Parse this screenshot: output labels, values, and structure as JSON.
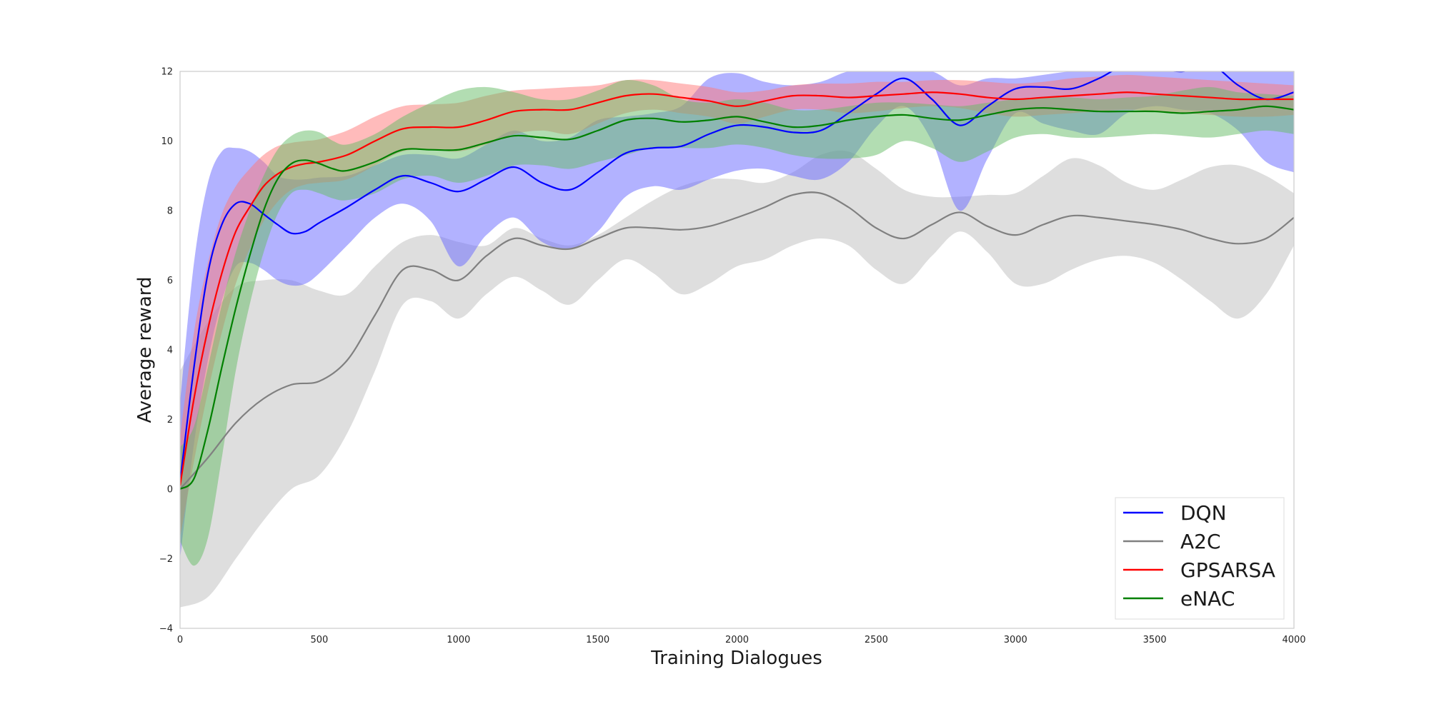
{
  "chart_data": {
    "type": "line",
    "title": "",
    "xlabel": "Training Dialogues",
    "ylabel": "Average reward",
    "xlim": [
      0,
      4000
    ],
    "ylim": [
      -4,
      12
    ],
    "xticks": [
      0,
      500,
      1000,
      1500,
      2000,
      2500,
      3000,
      3500,
      4000
    ],
    "yticks": [
      -4,
      -2,
      0,
      2,
      4,
      6,
      8,
      10,
      12
    ],
    "grid": false,
    "legend_position": "lower-right",
    "series": [
      {
        "name": "A2C",
        "color": "#808080",
        "band_color": "#bdbdbd",
        "x": [
          0,
          100,
          200,
          300,
          400,
          500,
          600,
          700,
          800,
          900,
          1000,
          1100,
          1200,
          1300,
          1400,
          1500,
          1600,
          1700,
          1800,
          1900,
          2000,
          2100,
          2200,
          2300,
          2400,
          2500,
          2600,
          2700,
          2800,
          2900,
          3000,
          3100,
          3200,
          3300,
          3400,
          3500,
          3600,
          3700,
          3800,
          3900,
          4000
        ],
        "mean": [
          0.0,
          0.9,
          1.9,
          2.6,
          3.0,
          3.1,
          3.7,
          5.0,
          6.3,
          6.3,
          6.0,
          6.7,
          7.2,
          7.0,
          6.9,
          7.2,
          7.5,
          7.5,
          7.45,
          7.55,
          7.8,
          8.1,
          8.45,
          8.5,
          8.1,
          7.5,
          7.2,
          7.6,
          7.95,
          7.55,
          7.3,
          7.6,
          7.85,
          7.8,
          7.7,
          7.6,
          7.45,
          7.2,
          7.05,
          7.2,
          7.8
        ],
        "upper": [
          3.4,
          4.8,
          5.8,
          6.0,
          6.0,
          5.7,
          5.6,
          6.4,
          7.1,
          7.3,
          7.1,
          7.0,
          7.5,
          7.2,
          7.0,
          7.3,
          7.8,
          8.3,
          8.7,
          8.9,
          8.9,
          8.8,
          9.1,
          9.6,
          9.7,
          9.2,
          8.6,
          8.4,
          8.4,
          8.45,
          8.5,
          9.0,
          9.5,
          9.3,
          8.8,
          8.6,
          8.9,
          9.25,
          9.3,
          9.0,
          8.5
        ],
        "lower": [
          -3.4,
          -3.1,
          -2.0,
          -0.9,
          0.0,
          0.4,
          1.6,
          3.4,
          5.3,
          5.4,
          4.9,
          5.6,
          6.1,
          5.7,
          5.3,
          6.0,
          6.6,
          6.2,
          5.6,
          5.9,
          6.4,
          6.6,
          7.0,
          7.2,
          7.0,
          6.3,
          5.9,
          6.7,
          7.4,
          6.8,
          5.9,
          5.9,
          6.3,
          6.6,
          6.7,
          6.5,
          6.0,
          5.4,
          4.9,
          5.6,
          7.0
        ]
      },
      {
        "name": "DQN",
        "color": "#0000ff",
        "band_color": "#6666ff",
        "x": [
          0,
          50,
          100,
          150,
          200,
          250,
          300,
          350,
          400,
          450,
          500,
          600,
          700,
          800,
          900,
          1000,
          1100,
          1200,
          1300,
          1400,
          1500,
          1600,
          1700,
          1800,
          1900,
          2000,
          2100,
          2200,
          2300,
          2400,
          2500,
          2600,
          2700,
          2800,
          2900,
          3000,
          3100,
          3200,
          3300,
          3400,
          3500,
          3600,
          3700,
          3800,
          3900,
          4000
        ],
        "mean": [
          0.2,
          3.5,
          6.2,
          7.6,
          8.2,
          8.2,
          7.9,
          7.6,
          7.35,
          7.4,
          7.65,
          8.1,
          8.6,
          9.0,
          8.8,
          8.55,
          8.9,
          9.25,
          8.8,
          8.6,
          9.1,
          9.65,
          9.8,
          9.85,
          10.2,
          10.45,
          10.4,
          10.25,
          10.3,
          10.8,
          11.35,
          11.8,
          11.2,
          10.45,
          11.0,
          11.5,
          11.55,
          11.5,
          11.8,
          12.2,
          12.1,
          12.0,
          12.2,
          11.6,
          11.2,
          11.4
        ],
        "upper": [
          2.5,
          6.5,
          8.8,
          9.7,
          9.8,
          9.7,
          9.4,
          9.0,
          8.9,
          8.9,
          8.95,
          9.0,
          9.3,
          9.6,
          9.6,
          9.5,
          9.9,
          10.3,
          10.0,
          10.1,
          10.6,
          10.7,
          10.8,
          11.0,
          11.8,
          11.95,
          11.7,
          11.6,
          11.7,
          12.0,
          12.0,
          12.0,
          12.0,
          11.6,
          11.8,
          11.8,
          11.9,
          12.0,
          12.0,
          12.0,
          12.0,
          12.0,
          12.0,
          12.0,
          12.0,
          12.0
        ],
        "lower": [
          -2.0,
          1.3,
          3.7,
          5.4,
          6.4,
          6.5,
          6.3,
          6.0,
          5.85,
          5.9,
          6.2,
          7.0,
          7.8,
          8.2,
          7.7,
          6.4,
          7.3,
          7.8,
          7.1,
          6.9,
          7.4,
          8.4,
          8.7,
          8.6,
          8.9,
          9.15,
          9.2,
          9.0,
          8.9,
          9.4,
          10.4,
          11.0,
          10.0,
          8.0,
          9.5,
          10.8,
          10.5,
          10.3,
          10.2,
          10.8,
          11.0,
          10.9,
          10.8,
          10.3,
          9.4,
          9.1
        ]
      },
      {
        "name": "GPSARSA",
        "color": "#ff0000",
        "band_color": "#ff7777",
        "x": [
          0,
          50,
          100,
          150,
          200,
          250,
          300,
          350,
          400,
          450,
          500,
          600,
          700,
          800,
          900,
          1000,
          1100,
          1200,
          1300,
          1400,
          1500,
          1600,
          1700,
          1800,
          1900,
          2000,
          2100,
          2200,
          2300,
          2400,
          2500,
          2600,
          2700,
          2800,
          2900,
          3000,
          3100,
          3200,
          3300,
          3400,
          3500,
          3600,
          3700,
          3800,
          3900,
          4000
        ],
        "mean": [
          0.1,
          2.6,
          4.6,
          6.2,
          7.4,
          8.1,
          8.7,
          9.05,
          9.25,
          9.35,
          9.4,
          9.6,
          10.0,
          10.35,
          10.4,
          10.4,
          10.6,
          10.85,
          10.9,
          10.9,
          11.1,
          11.3,
          11.35,
          11.25,
          11.15,
          11.0,
          11.15,
          11.3,
          11.3,
          11.25,
          11.3,
          11.35,
          11.4,
          11.35,
          11.25,
          11.2,
          11.25,
          11.3,
          11.35,
          11.4,
          11.35,
          11.3,
          11.25,
          11.2,
          11.2,
          11.2
        ],
        "upper": [
          1.5,
          4.5,
          6.5,
          7.9,
          8.7,
          9.2,
          9.6,
          9.85,
          9.95,
          10.0,
          10.05,
          10.3,
          10.7,
          11.0,
          11.05,
          11.1,
          11.3,
          11.45,
          11.5,
          11.55,
          11.6,
          11.75,
          11.75,
          11.65,
          11.55,
          11.4,
          11.45,
          11.6,
          11.65,
          11.65,
          11.7,
          11.7,
          11.75,
          11.75,
          11.7,
          11.65,
          11.7,
          11.8,
          11.85,
          11.9,
          11.85,
          11.8,
          11.75,
          11.7,
          11.65,
          11.6
        ],
        "lower": [
          -1.4,
          0.8,
          2.8,
          4.5,
          5.9,
          6.9,
          7.7,
          8.25,
          8.6,
          8.75,
          8.8,
          8.9,
          9.3,
          9.7,
          9.75,
          9.7,
          9.9,
          10.2,
          10.3,
          10.2,
          10.5,
          10.8,
          10.9,
          10.8,
          10.7,
          10.5,
          10.7,
          10.9,
          10.9,
          10.8,
          10.85,
          10.95,
          11.0,
          10.95,
          10.8,
          10.7,
          10.75,
          10.8,
          10.85,
          10.9,
          10.85,
          10.8,
          10.75,
          10.7,
          10.7,
          10.75
        ]
      },
      {
        "name": "eNAC",
        "color": "#008000",
        "band_color": "#66bb66",
        "x": [
          0,
          50,
          100,
          150,
          200,
          250,
          300,
          350,
          400,
          450,
          500,
          550,
          600,
          700,
          800,
          900,
          1000,
          1100,
          1200,
          1300,
          1400,
          1500,
          1600,
          1700,
          1800,
          1900,
          2000,
          2100,
          2200,
          2300,
          2400,
          2500,
          2600,
          2700,
          2800,
          2900,
          3000,
          3100,
          3200,
          3300,
          3400,
          3500,
          3600,
          3700,
          3800,
          3900,
          4000
        ],
        "mean": [
          0.0,
          0.3,
          1.7,
          3.5,
          5.2,
          6.7,
          8.0,
          8.9,
          9.35,
          9.45,
          9.35,
          9.2,
          9.15,
          9.4,
          9.75,
          9.75,
          9.75,
          9.95,
          10.15,
          10.1,
          10.05,
          10.3,
          10.6,
          10.65,
          10.55,
          10.6,
          10.7,
          10.55,
          10.4,
          10.45,
          10.6,
          10.7,
          10.75,
          10.65,
          10.6,
          10.75,
          10.9,
          10.95,
          10.9,
          10.85,
          10.85,
          10.85,
          10.8,
          10.85,
          10.9,
          11.0,
          10.9
        ],
        "upper": [
          1.2,
          1.8,
          3.5,
          5.3,
          6.8,
          8.0,
          9.0,
          9.75,
          10.15,
          10.3,
          10.25,
          10.0,
          9.9,
          10.2,
          10.7,
          11.1,
          11.45,
          11.55,
          11.4,
          11.2,
          11.2,
          11.45,
          11.75,
          11.6,
          11.2,
          11.1,
          11.2,
          11.1,
          10.9,
          10.9,
          11.0,
          11.1,
          11.1,
          11.05,
          11.0,
          11.1,
          11.2,
          11.25,
          11.25,
          11.2,
          11.25,
          11.3,
          11.45,
          11.55,
          11.4,
          11.35,
          11.3
        ],
        "lower": [
          -1.5,
          -2.2,
          -1.4,
          0.9,
          3.4,
          5.3,
          6.8,
          7.9,
          8.5,
          8.6,
          8.5,
          8.35,
          8.3,
          8.5,
          8.9,
          9.0,
          8.8,
          9.0,
          9.3,
          9.3,
          9.2,
          9.4,
          9.6,
          9.8,
          9.8,
          9.8,
          9.9,
          9.8,
          9.6,
          9.5,
          9.5,
          9.6,
          10.0,
          9.8,
          9.4,
          9.7,
          10.1,
          10.2,
          10.1,
          10.1,
          10.15,
          10.2,
          10.15,
          10.1,
          10.2,
          10.3,
          10.2
        ]
      }
    ],
    "legend_order": [
      "DQN",
      "A2C",
      "GPSARSA",
      "eNAC"
    ]
  }
}
